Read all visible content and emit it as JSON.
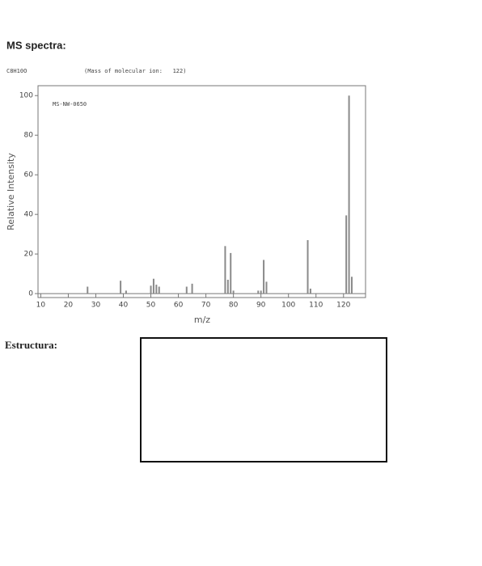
{
  "header": {
    "title": "MS spectra:",
    "formula": "C8H10O",
    "molecular_ion": "(Mass of molecular ion:   122)"
  },
  "chart_data": {
    "type": "bar",
    "annotation": "MS-NW-0650",
    "x_label": "m/z",
    "y_label": "Relative Intensity",
    "x": [
      27,
      39,
      41,
      50,
      51,
      52,
      53,
      63,
      65,
      77,
      78,
      79,
      80,
      89,
      90,
      91,
      92,
      107,
      108,
      121,
      122,
      123
    ],
    "values": [
      3.5,
      6.5,
      1.5,
      4,
      7.5,
      4.5,
      3.5,
      3.5,
      5,
      24,
      7,
      20.5,
      1.5,
      1.5,
      1.5,
      17,
      6,
      27,
      2.5,
      39.5,
      100,
      8.5
    ],
    "color": "#8a8a8a",
    "xlim": [
      9,
      128
    ],
    "ylim": [
      -2,
      105
    ],
    "xticks": [
      10,
      20,
      30,
      40,
      50,
      60,
      70,
      80,
      90,
      100,
      110,
      120
    ],
    "yticks": [
      0,
      20,
      40,
      60,
      80,
      100
    ]
  },
  "structure": {
    "label": "Estructura:"
  }
}
